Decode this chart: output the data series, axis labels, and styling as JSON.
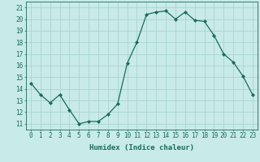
{
  "x": [
    0,
    1,
    2,
    3,
    4,
    5,
    6,
    7,
    8,
    9,
    10,
    11,
    12,
    13,
    14,
    15,
    16,
    17,
    18,
    19,
    20,
    21,
    22,
    23
  ],
  "y": [
    14.5,
    13.5,
    12.8,
    13.5,
    12.2,
    11.0,
    11.2,
    11.2,
    11.8,
    12.7,
    16.2,
    18.0,
    20.4,
    20.6,
    20.7,
    20.0,
    20.6,
    19.9,
    19.8,
    18.6,
    17.0,
    16.3,
    15.1,
    13.5
  ],
  "line_color": "#1a6b5a",
  "marker": "D",
  "marker_size": 2.0,
  "bg_color": "#c8eae8",
  "grid_color": "#aad4d0",
  "xlabel": "Humidex (Indice chaleur)",
  "xlim": [
    -0.5,
    23.5
  ],
  "ylim": [
    10.5,
    21.5
  ],
  "yticks": [
    11,
    12,
    13,
    14,
    15,
    16,
    17,
    18,
    19,
    20,
    21
  ],
  "xticks": [
    0,
    1,
    2,
    3,
    4,
    5,
    6,
    7,
    8,
    9,
    10,
    11,
    12,
    13,
    14,
    15,
    16,
    17,
    18,
    19,
    20,
    21,
    22,
    23
  ],
  "tick_color": "#1a6b5a",
  "axis_color": "#1a6b5a",
  "label_fontsize": 6.5,
  "tick_fontsize": 5.5
}
